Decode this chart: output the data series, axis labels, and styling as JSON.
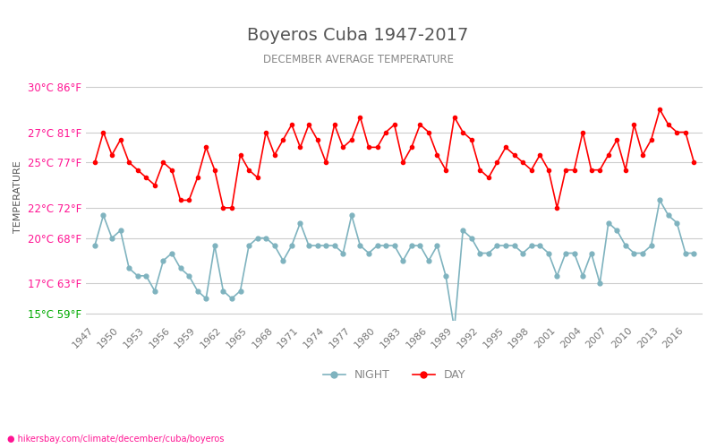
{
  "title": "Boyeros Cuba 1947-2017",
  "subtitle": "DECEMBER AVERAGE TEMPERATURE",
  "ylabel": "TEMPERATURE",
  "xlabel_url": "hikersbay.com/climate/december/cuba/boyeros",
  "yticks_c": [
    15,
    17,
    20,
    22,
    25,
    27,
    30
  ],
  "yticks_f": [
    59,
    63,
    68,
    72,
    77,
    81,
    86
  ],
  "ytick_colors": [
    "#00aa00",
    "#ff1493",
    "#ff1493",
    "#ff1493",
    "#ff1493",
    "#ff1493",
    "#ff1493"
  ],
  "ylim": [
    14.5,
    31.0
  ],
  "years": [
    1947,
    1948,
    1949,
    1950,
    1951,
    1952,
    1953,
    1954,
    1955,
    1956,
    1957,
    1958,
    1959,
    1960,
    1961,
    1962,
    1963,
    1964,
    1965,
    1966,
    1967,
    1968,
    1969,
    1970,
    1971,
    1972,
    1973,
    1974,
    1975,
    1976,
    1977,
    1978,
    1979,
    1980,
    1981,
    1982,
    1983,
    1984,
    1985,
    1986,
    1987,
    1988,
    1989,
    1990,
    1991,
    1992,
    1993,
    1994,
    1995,
    1996,
    1997,
    1998,
    1999,
    2000,
    2001,
    2002,
    2003,
    2004,
    2005,
    2006,
    2007,
    2008,
    2009,
    2010,
    2011,
    2012,
    2013,
    2014,
    2015,
    2016,
    2017
  ],
  "day_temps": [
    25.0,
    27.0,
    25.5,
    26.5,
    25.0,
    24.5,
    24.0,
    23.5,
    25.0,
    24.5,
    22.5,
    22.5,
    24.0,
    26.0,
    24.5,
    22.0,
    22.0,
    25.5,
    24.5,
    24.0,
    27.0,
    25.5,
    26.5,
    27.5,
    26.0,
    27.5,
    26.5,
    25.0,
    27.5,
    26.0,
    26.5,
    28.0,
    26.0,
    26.0,
    27.0,
    27.5,
    25.0,
    26.0,
    27.5,
    27.0,
    25.5,
    24.5,
    28.0,
    27.0,
    26.5,
    24.5,
    24.0,
    25.0,
    26.0,
    25.5,
    25.0,
    24.5,
    25.5,
    24.5,
    22.0,
    24.5,
    24.5,
    27.0,
    24.5,
    24.5,
    25.5,
    26.5,
    24.5,
    27.5,
    25.5,
    26.5,
    28.5,
    27.5,
    27.0,
    27.0,
    25.0
  ],
  "night_temps": [
    19.5,
    21.5,
    20.0,
    20.5,
    18.0,
    17.5,
    17.5,
    16.5,
    18.5,
    19.0,
    18.0,
    17.5,
    16.5,
    16.0,
    19.5,
    16.5,
    16.0,
    16.5,
    19.5,
    20.0,
    20.0,
    19.5,
    18.5,
    19.5,
    21.0,
    19.5,
    19.5,
    19.5,
    19.5,
    19.0,
    21.5,
    19.5,
    19.0,
    19.5,
    19.5,
    19.5,
    18.5,
    19.5,
    19.5,
    18.5,
    19.5,
    17.5,
    14.0,
    20.5,
    20.0,
    19.0,
    19.0,
    19.5,
    19.5,
    19.5,
    19.0,
    19.5,
    19.5,
    19.0,
    17.5,
    19.0,
    19.0,
    17.5,
    19.0,
    17.0,
    21.0,
    20.5,
    19.5,
    19.0,
    19.0,
    19.5,
    22.5,
    21.5,
    21.0,
    19.0,
    19.0
  ],
  "day_color": "#ff0000",
  "night_color": "#7fb3bf",
  "legend_night_label": "NIGHT",
  "legend_day_label": "DAY",
  "title_color": "#555555",
  "subtitle_color": "#888888",
  "ylabel_color": "#555555",
  "tick_label_color": "#ff1493",
  "grid_color": "#cccccc",
  "bg_color": "#ffffff",
  "url_color": "#ff1493",
  "url_text": "hikersbay.com/climate/december/cuba/boyeros"
}
